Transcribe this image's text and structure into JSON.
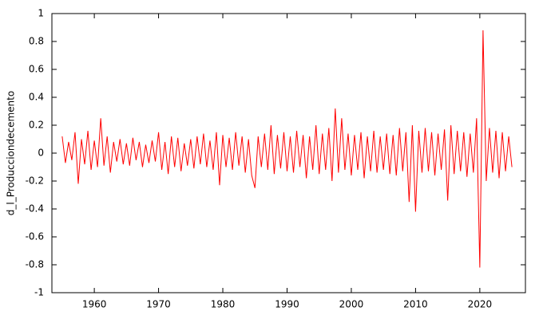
{
  "chart_data": {
    "type": "line",
    "ylabel": "d_l_Producciondecemento",
    "x": [
      1955,
      1955.5,
      1956,
      1956.5,
      1957,
      1957.5,
      1958,
      1958.5,
      1959,
      1959.5,
      1960,
      1960.5,
      1961,
      1961.5,
      1962,
      1962.5,
      1963,
      1963.5,
      1964,
      1964.5,
      1965,
      1965.5,
      1966,
      1966.5,
      1967,
      1967.5,
      1968,
      1968.5,
      1969,
      1969.5,
      1970,
      1970.5,
      1971,
      1971.5,
      1972,
      1972.5,
      1973,
      1973.5,
      1974,
      1974.5,
      1975,
      1975.5,
      1976,
      1976.5,
      1977,
      1977.5,
      1978,
      1978.5,
      1979,
      1979.5,
      1980,
      1980.5,
      1981,
      1981.5,
      1982,
      1982.5,
      1983,
      1983.5,
      1984,
      1984.5,
      1985,
      1985.5,
      1986,
      1986.5,
      1987,
      1987.5,
      1988,
      1988.5,
      1989,
      1989.5,
      1990,
      1990.5,
      1991,
      1991.5,
      1992,
      1992.5,
      1993,
      1993.5,
      1994,
      1994.5,
      1995,
      1995.5,
      1996,
      1996.5,
      1997,
      1997.5,
      1998,
      1998.5,
      1999,
      1999.5,
      2000,
      2000.5,
      2001,
      2001.5,
      2002,
      2002.5,
      2003,
      2003.5,
      2004,
      2004.5,
      2005,
      2005.5,
      2006,
      2006.5,
      2007,
      2007.5,
      2008,
      2008.5,
      2009,
      2009.5,
      2010,
      2010.5,
      2011,
      2011.5,
      2012,
      2012.5,
      2013,
      2013.5,
      2014,
      2014.5,
      2015,
      2015.5,
      2016,
      2016.5,
      2017,
      2017.5,
      2018,
      2018.5,
      2019,
      2019.5,
      2020,
      2020.5,
      2021,
      2021.5,
      2022,
      2022.5,
      2023,
      2023.5,
      2024,
      2024.5,
      2025
    ],
    "series": [
      {
        "color": "#ff0000",
        "values": [
          0.12,
          -0.07,
          0.08,
          -0.05,
          0.15,
          -0.22,
          0.1,
          -0.08,
          0.16,
          -0.12,
          0.09,
          -0.1,
          0.25,
          -0.09,
          0.12,
          -0.14,
          0.08,
          -0.06,
          0.1,
          -0.08,
          0.07,
          -0.09,
          0.11,
          -0.05,
          0.08,
          -0.1,
          0.06,
          -0.07,
          0.09,
          -0.06,
          0.15,
          -0.12,
          0.08,
          -0.15,
          0.12,
          -0.1,
          0.11,
          -0.13,
          0.07,
          -0.09,
          0.1,
          -0.11,
          0.12,
          -0.08,
          0.14,
          -0.1,
          0.09,
          -0.12,
          0.15,
          -0.23,
          0.13,
          -0.1,
          0.11,
          -0.12,
          0.15,
          -0.09,
          0.12,
          -0.14,
          0.1,
          -0.16,
          -0.25,
          0.12,
          -0.1,
          0.14,
          -0.12,
          0.2,
          -0.15,
          0.13,
          -0.11,
          0.15,
          -0.13,
          0.12,
          -0.14,
          0.16,
          -0.1,
          0.13,
          -0.18,
          0.12,
          -0.12,
          0.2,
          -0.15,
          0.14,
          -0.12,
          0.18,
          -0.2,
          0.32,
          -0.14,
          0.25,
          -0.12,
          0.14,
          -0.16,
          0.13,
          -0.12,
          0.15,
          -0.18,
          0.12,
          -0.13,
          0.16,
          -0.14,
          0.12,
          -0.12,
          0.14,
          -0.15,
          0.13,
          -0.16,
          0.18,
          -0.13,
          0.15,
          -0.35,
          0.2,
          -0.42,
          0.16,
          -0.14,
          0.18,
          -0.13,
          0.15,
          -0.16,
          0.14,
          -0.12,
          0.17,
          -0.34,
          0.2,
          -0.15,
          0.16,
          -0.13,
          0.15,
          -0.17,
          0.14,
          -0.14,
          0.25,
          -0.82,
          0.88,
          -0.2,
          0.18,
          -0.14,
          0.16,
          -0.18,
          0.15,
          -0.13,
          0.12,
          -0.1
        ]
      }
    ],
    "xlim": [
      1953.4,
      2027.1
    ],
    "xticks": [
      1960,
      1970,
      1980,
      1990,
      2000,
      2010,
      2020
    ],
    "ylim": [
      -1,
      1
    ],
    "yticks": [
      -1,
      -0.8,
      -0.6,
      -0.4,
      -0.2,
      0,
      0.2,
      0.4,
      0.6,
      0.8,
      1
    ],
    "grid": false
  }
}
